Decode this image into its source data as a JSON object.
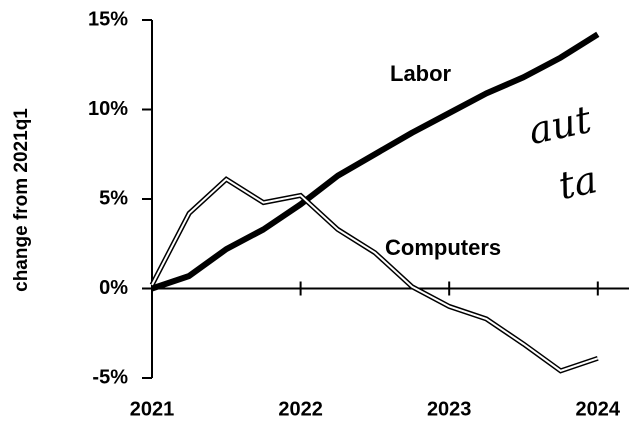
{
  "chart_data": {
    "type": "line",
    "y_label": "change from 2021q1",
    "x": [
      2021,
      2021.25,
      2021.5,
      2021.75,
      2022,
      2022.25,
      2022.5,
      2022.75,
      2023,
      2023.25,
      2023.5,
      2023.75,
      2024
    ],
    "series": [
      {
        "name": "Labor",
        "color": "#000000",
        "values": [
          0,
          0.7,
          2.2,
          3.3,
          4.7,
          6.3,
          7.5,
          8.7,
          9.8,
          10.9,
          11.8,
          12.9,
          14.2
        ]
      },
      {
        "name": "Computers",
        "color": "#000000",
        "values": [
          0.2,
          4.2,
          6.1,
          4.8,
          5.2,
          3.3,
          2.0,
          0.1,
          -1.0,
          -1.7,
          -3.1,
          -4.6,
          -3.9
        ]
      }
    ],
    "xlim": [
      2021,
      2024.21
    ],
    "xticks": [
      2021,
      2022,
      2023,
      2024
    ],
    "ylim": [
      -5,
      15
    ],
    "yticks": [
      {
        "value": -5,
        "label": "-5%"
      },
      {
        "value": 0,
        "label": "0%"
      },
      {
        "value": 5,
        "label": "5%"
      },
      {
        "value": 10,
        "label": "10%"
      },
      {
        "value": 15,
        "label": "15%"
      }
    ],
    "annotations": [
      "aut",
      "ta"
    ]
  }
}
